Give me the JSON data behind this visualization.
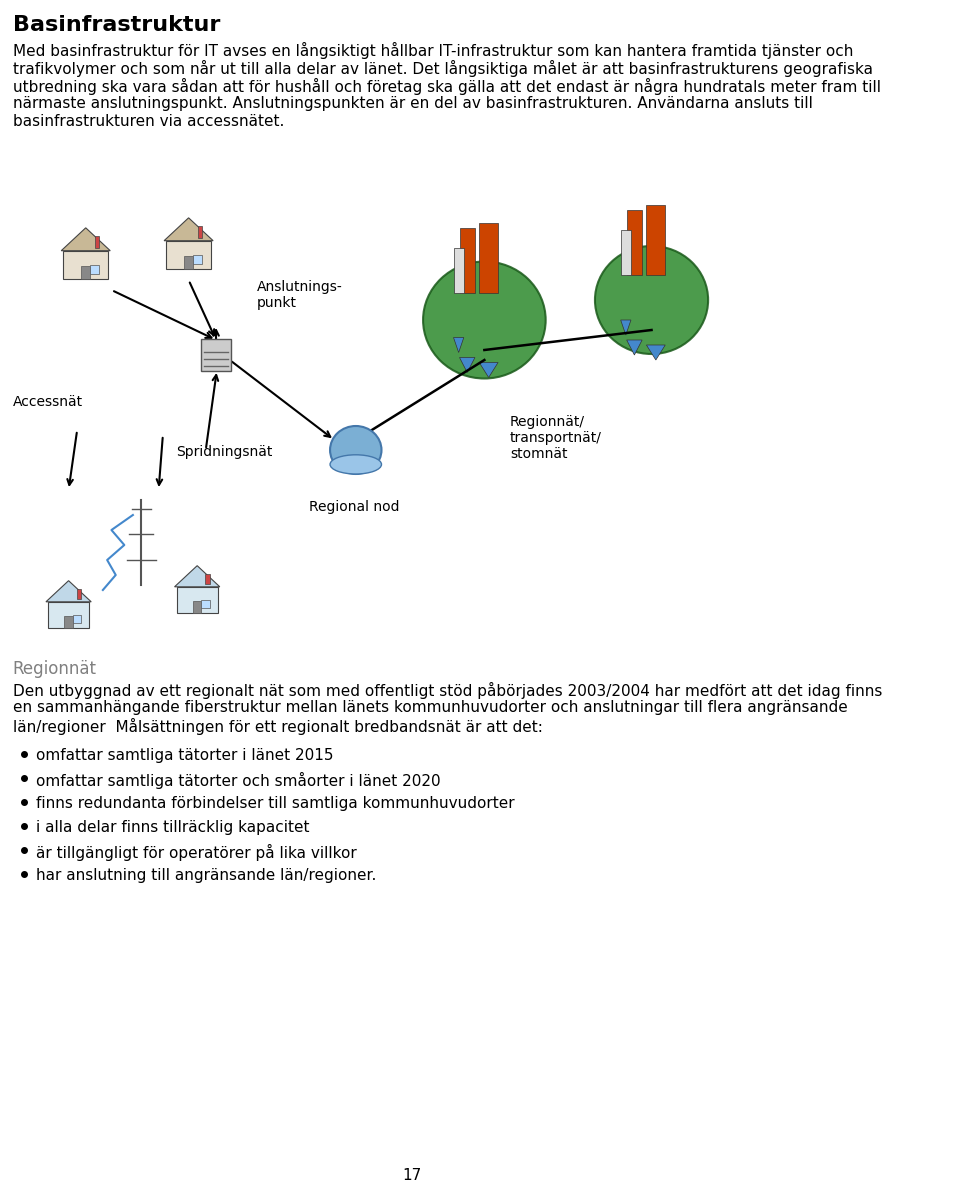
{
  "title": "Basinfrastruktur",
  "title_fontsize": 16,
  "title_bold": true,
  "body_text": "Med basinfrastruktur för IT avses en långsiktigt hållbar IT-infrastruktur som kan hantera framtida tjänster och trafikvolymer och som når ut till alla delar av länet. Det långsiktiga målet är att basinfrastrukturens geografiska utbredning ska vara sådan att för hushåll och företag ska gälla att det endast är några hundratals meter fram till närmaste anslutningspunkt. Anslutningspunkten är en del av basinfrastrukturen. Användarna ansluts till basinfrastrukturen via accessnätet.",
  "body_fontsize": 11,
  "diagram_labels": {
    "anslutnings_punkt": "Anslutnings-\npunkt",
    "accessnat": "Accessnät",
    "spridningsnat": "Spridningsnät",
    "regional_nod": "Regional nod",
    "regionnat": "Regionnät/\ntransportnät/\nstomnät"
  },
  "regionnat_header": "Regionnät",
  "regionnat_header_color": "#808080",
  "regionnat_body": "Den utbyggnad av ett regionalt nät som med offentligt stöd påbörjades 2003/2004 har medfört att det idag finns en sammanhängande fiberstruktur mellan länets kommunhuvudorter och anslutningar till flera angränsande län/regioner  Målsättningen för ett regionalt bredbandsnät är att det:",
  "bullets": [
    "omfattar samtliga tätorter i länet 2015",
    "omfattar samtliga tätorter och småorter i länet 2020",
    "finns redundanta förbindelser till samtliga kommunhuvudorter",
    "i alla delar finns tillräcklig kapacitet",
    "är tillgängligt för operatörer på lika villkor",
    "har anslutning till angränsande län/regioner."
  ],
  "page_number": "17",
  "bg_color": "#ffffff",
  "text_color": "#000000",
  "body_text_fontsize": 11
}
